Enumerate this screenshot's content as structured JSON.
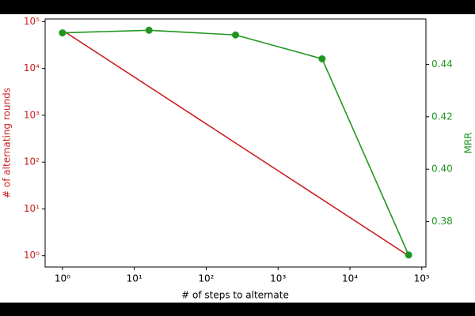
{
  "chart_data": {
    "type": "line",
    "xlabel": "# of steps to alternate",
    "ylabel": "# of alternating rounds",
    "y2label": "MRR",
    "xscale": "log",
    "yscale": "log",
    "xlim": [
      0.574,
      114100
    ],
    "xticks": [
      {
        "value": 1,
        "label": "10⁰"
      },
      {
        "value": 10,
        "label": "10¹"
      },
      {
        "value": 100,
        "label": "10²"
      },
      {
        "value": 1000,
        "label": "10³"
      },
      {
        "value": 10000,
        "label": "10⁴"
      },
      {
        "value": 100000,
        "label": "10⁵"
      }
    ],
    "ylim": [
      0.574,
      114100
    ],
    "yticks": [
      {
        "value": 1,
        "label": "10⁰"
      },
      {
        "value": 10,
        "label": "10¹"
      },
      {
        "value": 100,
        "label": "10²"
      },
      {
        "value": 1000,
        "label": "10³"
      },
      {
        "value": 10000,
        "label": "10⁴"
      },
      {
        "value": 100000,
        "label": "10⁵"
      }
    ],
    "y2lim": [
      0.3627,
      0.4573
    ],
    "y2ticks": [
      0.38,
      {
        "value": 0.4,
        "label": "0.40"
      },
      0.42,
      0.44
    ],
    "series": [
      {
        "color": "#cc2020",
        "axis": "y",
        "marker": false,
        "x": [
          1,
          65536
        ],
        "values": [
          65536,
          1
        ]
      },
      {
        "color": "#1f961f",
        "axis": "y2",
        "marker": true,
        "x": [
          1,
          16,
          256,
          4096,
          65536
        ],
        "values": [
          0.452,
          0.453,
          0.4512,
          0.4421,
          0.3673
        ]
      }
    ]
  }
}
